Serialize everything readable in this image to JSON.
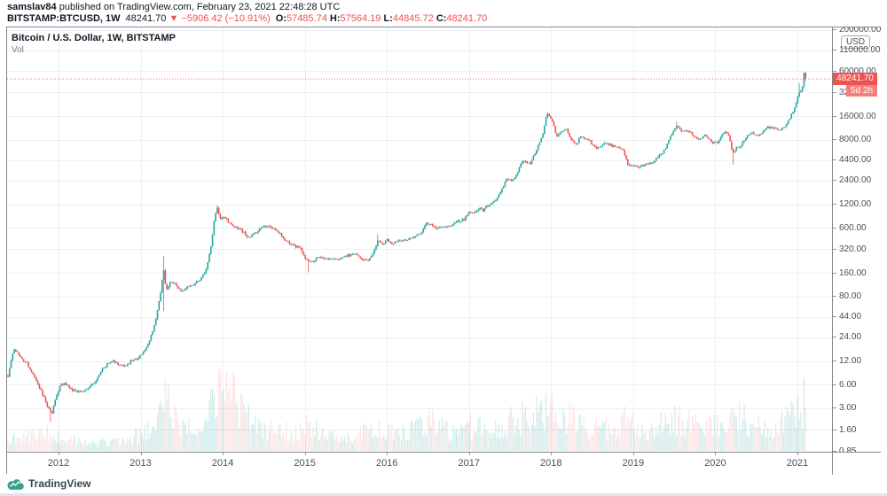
{
  "header": {
    "author": "samslav84",
    "published": " published on TradingView.com, February 23, 2021 22:48:28 UTC",
    "symbol": "BITSTAMP:BTCUSD, 1W",
    "last": "48241.70",
    "change": "▼ −5906.42 (−10.91%)",
    "o_label": "O:",
    "o_value": "57485.74",
    "h_label": "H:",
    "h_value": "57564.19",
    "l_label": "L:",
    "l_value": "44845.72",
    "c_label": "C:",
    "c_value": "48241.70"
  },
  "legend": {
    "title": "Bitcoin / U.S. Dollar, 1W, BITSTAMP",
    "indicator": "Vol"
  },
  "price_axis": {
    "currency": "USD",
    "ticks": [
      {
        "label": "200000.00",
        "value": 200000
      },
      {
        "label": "110000.00",
        "value": 110000
      },
      {
        "label": "60000.00",
        "value": 60000
      },
      {
        "label": "32000.00",
        "value": 32000
      },
      {
        "label": "16000.00",
        "value": 16000
      },
      {
        "label": "8000.00",
        "value": 8000
      },
      {
        "label": "4400.00",
        "value": 4400
      },
      {
        "label": "2400.00",
        "value": 2400
      },
      {
        "label": "1200.00",
        "value": 1200
      },
      {
        "label": "600.00",
        "value": 600
      },
      {
        "label": "320.00",
        "value": 320
      },
      {
        "label": "160.00",
        "value": 160
      },
      {
        "label": "80.00",
        "value": 80
      },
      {
        "label": "44.00",
        "value": 44
      },
      {
        "label": "24.00",
        "value": 24
      },
      {
        "label": "12.00",
        "value": 12
      },
      {
        "label": "6.00",
        "value": 6
      },
      {
        "label": "3.00",
        "value": 3
      },
      {
        "label": "1.60",
        "value": 1.6
      },
      {
        "label": "0.85",
        "value": 0.85
      }
    ]
  },
  "time_axis": {
    "years": [
      2012,
      2013,
      2014,
      2015,
      2016,
      2017,
      2018,
      2019,
      2020,
      2021
    ]
  },
  "price_marker": {
    "label": "48241.70",
    "countdown": "5d 2h",
    "value": 48241.7
  },
  "footer": {
    "brand": "TradingView"
  },
  "colors": {
    "up": "#26a69a",
    "down": "#ef5350",
    "vol_up": "rgba(38,166,154,0.22)",
    "vol_down": "rgba(239,83,80,0.16)",
    "grid": "#eceff4",
    "price_line": "#ef5350",
    "label_bg": "#ef5350",
    "countdown_bg": "#f47f7c"
  },
  "chart_data": {
    "type": "candlestick",
    "symbol": "BITSTAMP:BTCUSD",
    "timeframe": "1W",
    "scale": "log",
    "title": "Bitcoin / U.S. Dollar, 1W, BITSTAMP",
    "x_range": [
      2011.384,
      2021.115
    ],
    "y_range": [
      0.835,
      216000
    ],
    "grid": true,
    "price_anchors": [
      [
        2011.38,
        7.5
      ],
      [
        2011.44,
        15
      ],
      [
        2011.47,
        17
      ],
      [
        2011.55,
        13
      ],
      [
        2011.62,
        11
      ],
      [
        2011.72,
        7
      ],
      [
        2011.82,
        4.2
      ],
      [
        2011.88,
        3.0
      ],
      [
        2011.92,
        2.6
      ],
      [
        2011.97,
        4.2
      ],
      [
        2012.02,
        5.8
      ],
      [
        2012.08,
        6.3
      ],
      [
        2012.16,
        5.2
      ],
      [
        2012.24,
        4.9
      ],
      [
        2012.34,
        5.1
      ],
      [
        2012.44,
        6.4
      ],
      [
        2012.52,
        8.8
      ],
      [
        2012.6,
        11.2
      ],
      [
        2012.66,
        12.4
      ],
      [
        2012.72,
        11.0
      ],
      [
        2012.8,
        10.4
      ],
      [
        2012.88,
        11.8
      ],
      [
        2012.96,
        13.2
      ],
      [
        2013.04,
        15.5
      ],
      [
        2013.12,
        24
      ],
      [
        2013.18,
        38
      ],
      [
        2013.24,
        85
      ],
      [
        2013.28,
        180
      ],
      [
        2013.31,
        95
      ],
      [
        2013.36,
        120
      ],
      [
        2013.42,
        115
      ],
      [
        2013.5,
        95
      ],
      [
        2013.58,
        105
      ],
      [
        2013.66,
        115
      ],
      [
        2013.74,
        135
      ],
      [
        2013.8,
        180
      ],
      [
        2013.86,
        360
      ],
      [
        2013.9,
        800
      ],
      [
        2013.93,
        1100
      ],
      [
        2013.97,
        780
      ],
      [
        2014.02,
        830
      ],
      [
        2014.08,
        700
      ],
      [
        2014.14,
        620
      ],
      [
        2014.22,
        580
      ],
      [
        2014.3,
        450
      ],
      [
        2014.38,
        510
      ],
      [
        2014.46,
        610
      ],
      [
        2014.54,
        620
      ],
      [
        2014.62,
        590
      ],
      [
        2014.7,
        500
      ],
      [
        2014.78,
        400
      ],
      [
        2014.86,
        360
      ],
      [
        2014.94,
        330
      ],
      [
        2015.02,
        230
      ],
      [
        2015.08,
        225
      ],
      [
        2015.16,
        255
      ],
      [
        2015.24,
        245
      ],
      [
        2015.32,
        235
      ],
      [
        2015.42,
        240
      ],
      [
        2015.52,
        265
      ],
      [
        2015.62,
        280
      ],
      [
        2015.7,
        235
      ],
      [
        2015.78,
        240
      ],
      [
        2015.84,
        290
      ],
      [
        2015.89,
        420
      ],
      [
        2015.94,
        370
      ],
      [
        2016.0,
        434
      ],
      [
        2016.06,
        390
      ],
      [
        2016.14,
        415
      ],
      [
        2016.22,
        420
      ],
      [
        2016.32,
        445
      ],
      [
        2016.42,
        530
      ],
      [
        2016.48,
        690
      ],
      [
        2016.54,
        660
      ],
      [
        2016.62,
        600
      ],
      [
        2016.7,
        630
      ],
      [
        2016.78,
        640
      ],
      [
        2016.86,
        710
      ],
      [
        2016.94,
        790
      ],
      [
        2017.0,
        970
      ],
      [
        2017.06,
        900
      ],
      [
        2017.14,
        1080
      ],
      [
        2017.18,
        1000
      ],
      [
        2017.24,
        1180
      ],
      [
        2017.32,
        1300
      ],
      [
        2017.4,
        1900
      ],
      [
        2017.46,
        2550
      ],
      [
        2017.52,
        2500
      ],
      [
        2017.58,
        2800
      ],
      [
        2017.64,
        4200
      ],
      [
        2017.7,
        4300
      ],
      [
        2017.74,
        3800
      ],
      [
        2017.8,
        5300
      ],
      [
        2017.86,
        7200
      ],
      [
        2017.9,
        9800
      ],
      [
        2017.94,
        16000
      ],
      [
        2017.97,
        17500
      ],
      [
        2018.02,
        13500
      ],
      [
        2018.07,
        8700
      ],
      [
        2018.13,
        10200
      ],
      [
        2018.18,
        11000
      ],
      [
        2018.24,
        8200
      ],
      [
        2018.3,
        7000
      ],
      [
        2018.36,
        8900
      ],
      [
        2018.42,
        8400
      ],
      [
        2018.48,
        7400
      ],
      [
        2018.54,
        6400
      ],
      [
        2018.6,
        6700
      ],
      [
        2018.66,
        7300
      ],
      [
        2018.72,
        6900
      ],
      [
        2018.78,
        6500
      ],
      [
        2018.84,
        6400
      ],
      [
        2018.89,
        5500
      ],
      [
        2018.93,
        3900
      ],
      [
        2018.98,
        3800
      ],
      [
        2019.04,
        3550
      ],
      [
        2019.1,
        3650
      ],
      [
        2019.16,
        3900
      ],
      [
        2019.24,
        4000
      ],
      [
        2019.32,
        5100
      ],
      [
        2019.38,
        5800
      ],
      [
        2019.44,
        8000
      ],
      [
        2019.5,
        10800
      ],
      [
        2019.54,
        11800
      ],
      [
        2019.58,
        10600
      ],
      [
        2019.64,
        10200
      ],
      [
        2019.7,
        10000
      ],
      [
        2019.76,
        8400
      ],
      [
        2019.82,
        8200
      ],
      [
        2019.86,
        9300
      ],
      [
        2019.9,
        8600
      ],
      [
        2019.96,
        7300
      ],
      [
        2020.02,
        7300
      ],
      [
        2020.08,
        9400
      ],
      [
        2020.13,
        10000
      ],
      [
        2020.17,
        8900
      ],
      [
        2020.21,
        5300
      ],
      [
        2020.26,
        6200
      ],
      [
        2020.32,
        6900
      ],
      [
        2020.38,
        8800
      ],
      [
        2020.44,
        9700
      ],
      [
        2020.5,
        9100
      ],
      [
        2020.56,
        9200
      ],
      [
        2020.62,
        11200
      ],
      [
        2020.68,
        11700
      ],
      [
        2020.74,
        10800
      ],
      [
        2020.8,
        10600
      ],
      [
        2020.84,
        11500
      ],
      [
        2020.88,
        13500
      ],
      [
        2020.92,
        16000
      ],
      [
        2020.96,
        19200
      ],
      [
        2021.0,
        26500
      ],
      [
        2021.02,
        33000
      ],
      [
        2021.04,
        32000
      ],
      [
        2021.06,
        36000
      ],
      [
        2021.08,
        46500
      ],
      [
        2021.1,
        57000
      ],
      [
        2021.115,
        48241.7
      ]
    ],
    "events": [
      {
        "t": 2011.9,
        "low": 2.0
      },
      {
        "t": 2013.285,
        "high": 262,
        "low": 52
      },
      {
        "t": 2013.93,
        "high": 1160
      },
      {
        "t": 2015.04,
        "low": 162
      },
      {
        "t": 2015.89,
        "high": 500
      },
      {
        "t": 2019.52,
        "high": 13500
      },
      {
        "t": 2020.21,
        "low": 3850
      },
      {
        "t": 2021.02,
        "high": 42000
      }
    ],
    "volume_profile": [
      [
        2011.38,
        0.18
      ],
      [
        2011.9,
        0.28
      ],
      [
        2012.3,
        0.12
      ],
      [
        2012.8,
        0.15
      ],
      [
        2013.1,
        0.35
      ],
      [
        2013.3,
        0.8
      ],
      [
        2013.5,
        0.35
      ],
      [
        2013.75,
        0.3
      ],
      [
        2013.93,
        1.0
      ],
      [
        2014.1,
        0.85
      ],
      [
        2014.3,
        0.5
      ],
      [
        2014.6,
        0.3
      ],
      [
        2014.9,
        0.3
      ],
      [
        2015.05,
        0.4
      ],
      [
        2015.3,
        0.22
      ],
      [
        2015.6,
        0.2
      ],
      [
        2015.9,
        0.42
      ],
      [
        2016.1,
        0.25
      ],
      [
        2016.5,
        0.45
      ],
      [
        2016.8,
        0.3
      ],
      [
        2017.0,
        0.38
      ],
      [
        2017.3,
        0.35
      ],
      [
        2017.6,
        0.5
      ],
      [
        2017.9,
        0.6
      ],
      [
        2018.0,
        0.65
      ],
      [
        2018.15,
        0.55
      ],
      [
        2018.4,
        0.38
      ],
      [
        2018.7,
        0.35
      ],
      [
        2018.95,
        0.55
      ],
      [
        2019.2,
        0.3
      ],
      [
        2019.45,
        0.55
      ],
      [
        2019.7,
        0.45
      ],
      [
        2019.9,
        0.4
      ],
      [
        2020.1,
        0.45
      ],
      [
        2020.21,
        0.65
      ],
      [
        2020.4,
        0.42
      ],
      [
        2020.7,
        0.35
      ],
      [
        2020.9,
        0.5
      ],
      [
        2021.0,
        0.6
      ],
      [
        2021.08,
        0.75
      ],
      [
        2021.115,
        0.8
      ]
    ],
    "last_candle": {
      "open": 57485.74,
      "high": 57564.19,
      "low": 44845.72,
      "close": 48241.7
    }
  }
}
